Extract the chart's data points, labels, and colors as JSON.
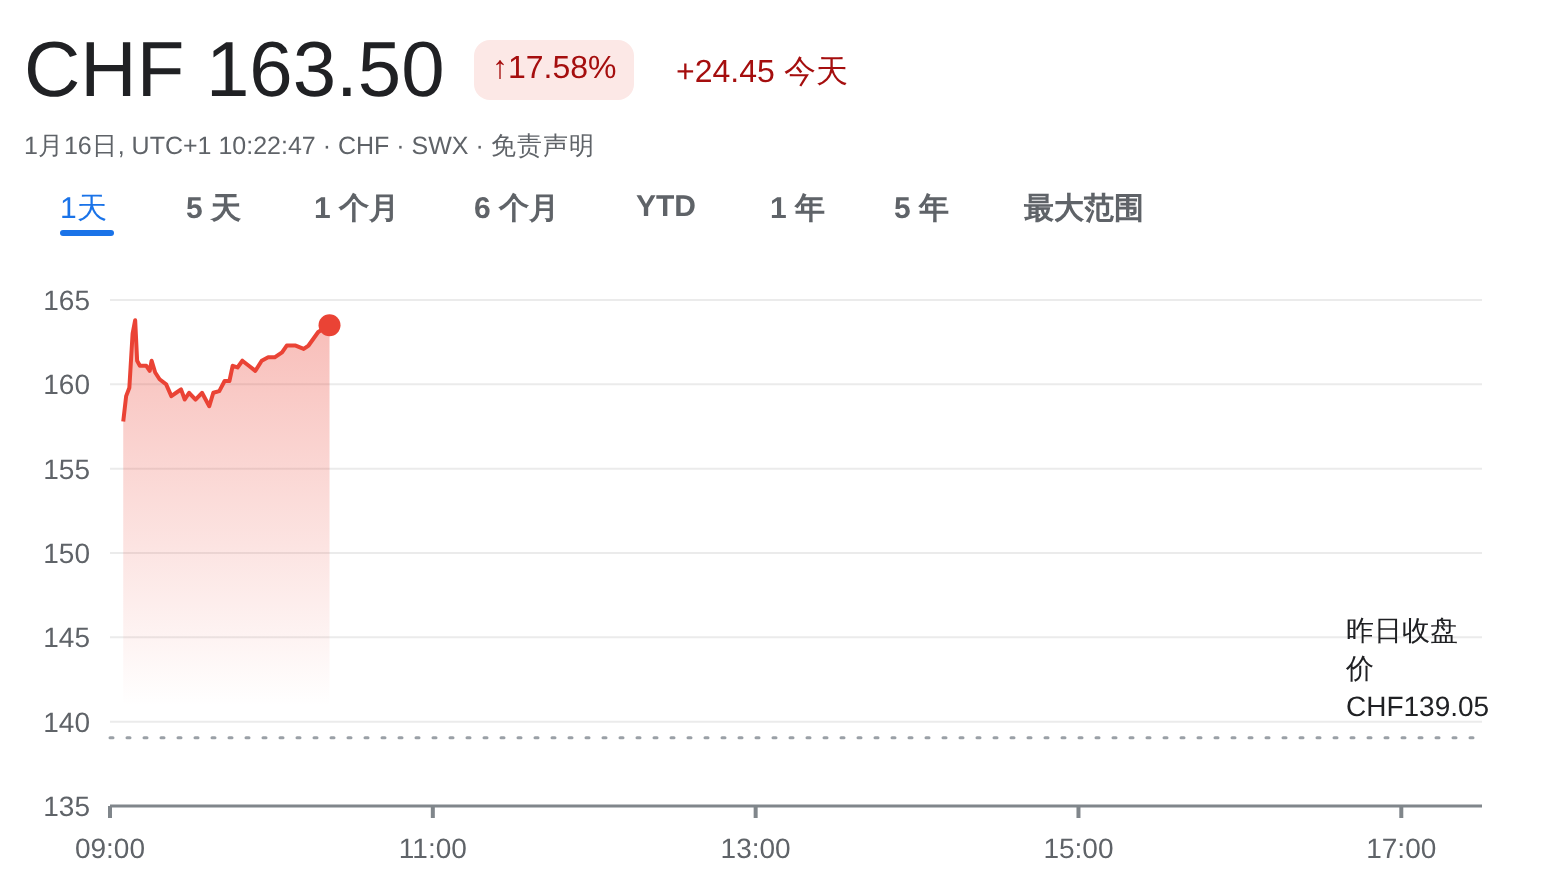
{
  "chart_data": {
    "type": "area",
    "title": "CHF 163.50",
    "subtitle": "1月16日, UTC+1 10:22:47 · CHF · SWX · 免责声明",
    "annotations": [
      "↑17.58%",
      "+24.45 今天",
      "1天",
      "5 天",
      "1 个月",
      "6 个月",
      "YTD",
      "1 年",
      "5 年",
      "最大范围"
    ],
    "x": [
      9.082,
      9.1,
      9.12,
      9.14,
      9.156,
      9.168,
      9.185,
      9.225,
      9.246,
      9.258,
      9.28,
      9.307,
      9.348,
      9.38,
      9.41,
      9.44,
      9.463,
      9.49,
      9.53,
      9.57,
      9.615,
      9.64,
      9.677,
      9.71,
      9.74,
      9.76,
      9.79,
      9.82,
      9.86,
      9.9,
      9.94,
      9.98,
      10.02,
      10.066,
      10.095,
      10.15,
      10.2,
      10.23,
      10.29,
      10.36
    ],
    "series": [
      {
        "color": "#ea4335",
        "values": [
          157.8,
          159.3,
          159.8,
          163.0,
          163.8,
          161.4,
          161.1,
          161.1,
          160.8,
          161.4,
          160.7,
          160.3,
          160.0,
          159.3,
          159.5,
          159.7,
          159.1,
          159.5,
          159.1,
          159.5,
          158.7,
          159.5,
          159.6,
          160.2,
          160.2,
          161.1,
          161.0,
          161.4,
          161.1,
          160.8,
          161.4,
          161.6,
          161.6,
          161.9,
          162.3,
          162.3,
          162.1,
          162.3,
          163.1,
          163.5
        ]
      }
    ],
    "xlim": [
      9,
      17.5
    ],
    "xticks": [
      {
        "value": 9,
        "label": "09:00"
      },
      {
        "value": 11,
        "label": "11:00"
      },
      {
        "value": 13,
        "label": "13:00"
      },
      {
        "value": 15,
        "label": "15:00"
      },
      {
        "value": 17,
        "label": "17:00"
      }
    ],
    "ylim": [
      135,
      165
    ],
    "yticks": [
      135,
      140,
      145,
      150,
      155,
      160,
      165
    ],
    "ref_lines": [
      {
        "axis": "y",
        "value": 139.05,
        "label": "昨日收盘价CHF139.05",
        "color": "#9aa0a6",
        "line_style": "dotted"
      }
    ],
    "grid": "y"
  }
}
